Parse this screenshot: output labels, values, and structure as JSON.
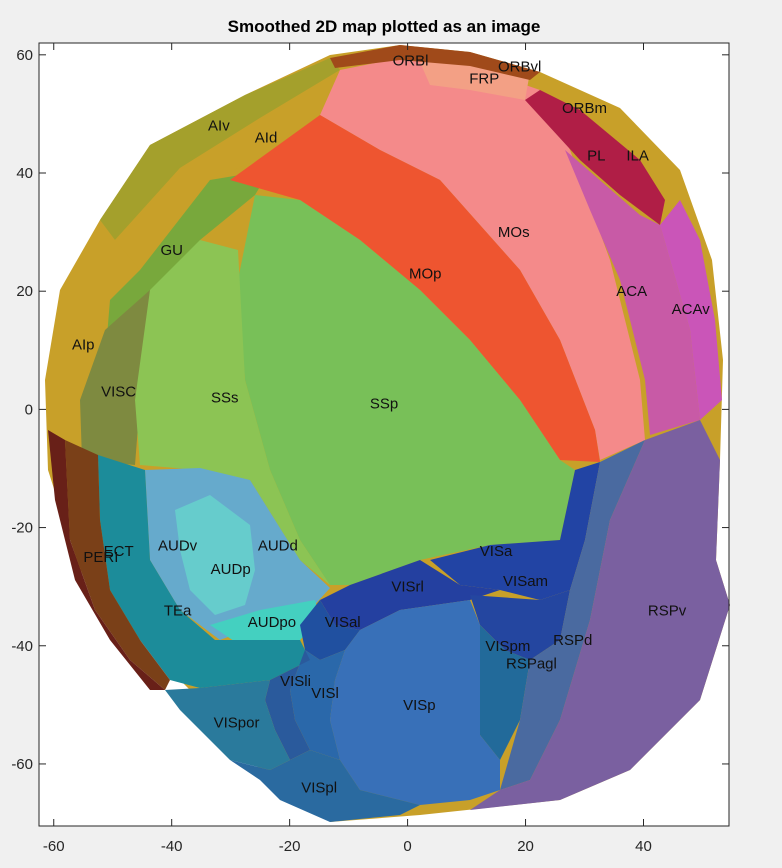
{
  "chart_data": {
    "type": "heatmap",
    "title": "Smoothed 2D map plotted as an image",
    "xlabel": "",
    "ylabel": "",
    "xlim": [
      -62.5,
      54.5
    ],
    "ylim": [
      -70.5,
      62
    ],
    "xticks": [
      -60,
      -40,
      -20,
      0,
      20,
      40
    ],
    "yticks": [
      60,
      40,
      20,
      0,
      -20,
      -40,
      -60
    ],
    "grid": false,
    "regions": [
      {
        "label": "ORBl",
        "x": 0.5,
        "y": 59,
        "color": "#a04a1a"
      },
      {
        "label": "FRP",
        "x": 13,
        "y": 56,
        "color": "#f3a085"
      },
      {
        "label": "ORBvl",
        "x": 19,
        "y": 58,
        "color": "#c96a2c"
      },
      {
        "label": "ORBm",
        "x": 30,
        "y": 51,
        "color": "#b01e46"
      },
      {
        "label": "PL",
        "x": 32,
        "y": 43,
        "color": "#a41f44"
      },
      {
        "label": "ILA",
        "x": 39,
        "y": 43,
        "color": "#8e2040"
      },
      {
        "label": "AIv",
        "x": -32,
        "y": 48,
        "color": "#a4a02c"
      },
      {
        "label": "AId",
        "x": -24,
        "y": 46,
        "color": "#c8a029"
      },
      {
        "label": "MOs",
        "x": 18,
        "y": 30,
        "color": "#f48a8a"
      },
      {
        "label": "MOp",
        "x": 3,
        "y": 23,
        "color": "#ee5530"
      },
      {
        "label": "GU",
        "x": -40,
        "y": 27,
        "color": "#78a83c"
      },
      {
        "label": "ACA",
        "x": 38,
        "y": 20,
        "color": "#c85aa6"
      },
      {
        "label": "ACAv",
        "x": 48,
        "y": 17,
        "color": "#ca55b8"
      },
      {
        "label": "AIp",
        "x": -55,
        "y": 11,
        "color": "#c8a029"
      },
      {
        "label": "VISC",
        "x": -49,
        "y": 3,
        "color": "#7e8a40"
      },
      {
        "label": "SSs",
        "x": -31,
        "y": 2,
        "color": "#8cc454"
      },
      {
        "label": "SSp",
        "x": -4,
        "y": 1,
        "color": "#78c058"
      },
      {
        "label": "AUDv",
        "x": -39,
        "y": -23,
        "color": "#66aacc"
      },
      {
        "label": "AUDd",
        "x": -22,
        "y": -23,
        "color": "#6ab8cc"
      },
      {
        "label": "AUDp",
        "x": -30,
        "y": -27,
        "color": "#66cccc"
      },
      {
        "label": "ECT",
        "x": -49,
        "y": -24,
        "color": "#7a4018"
      },
      {
        "label": "PERI",
        "x": -52,
        "y": -25,
        "color": "#682018"
      },
      {
        "label": "TEa",
        "x": -39,
        "y": -34,
        "color": "#1c8c9a"
      },
      {
        "label": "AUDpo",
        "x": -23,
        "y": -36,
        "color": "#44d0c0"
      },
      {
        "label": "VISal",
        "x": -11,
        "y": -36,
        "color": "#2050a0"
      },
      {
        "label": "VISrl",
        "x": 0,
        "y": -30,
        "color": "#2440a0"
      },
      {
        "label": "VISa",
        "x": 15,
        "y": -24,
        "color": "#2244a4"
      },
      {
        "label": "VISam",
        "x": 20,
        "y": -29,
        "color": "#2446a0"
      },
      {
        "label": "VISpm",
        "x": 17,
        "y": -40,
        "color": "#226a9a"
      },
      {
        "label": "RSPagl",
        "x": 21,
        "y": -43,
        "color": "#4a6aa0"
      },
      {
        "label": "RSPd",
        "x": 28,
        "y": -39,
        "color": "#58609c"
      },
      {
        "label": "RSPv",
        "x": 44,
        "y": -34,
        "color": "#7a60a0"
      },
      {
        "label": "VISli",
        "x": -19,
        "y": -46,
        "color": "#2a5a9c"
      },
      {
        "label": "VISl",
        "x": -14,
        "y": -48,
        "color": "#2a68aa"
      },
      {
        "label": "VISp",
        "x": 2,
        "y": -50,
        "color": "#3870b8"
      },
      {
        "label": "VISpor",
        "x": -29,
        "y": -53,
        "color": "#2a7a9c"
      },
      {
        "label": "VISpl",
        "x": -15,
        "y": -64,
        "color": "#2a6aa0"
      }
    ]
  }
}
